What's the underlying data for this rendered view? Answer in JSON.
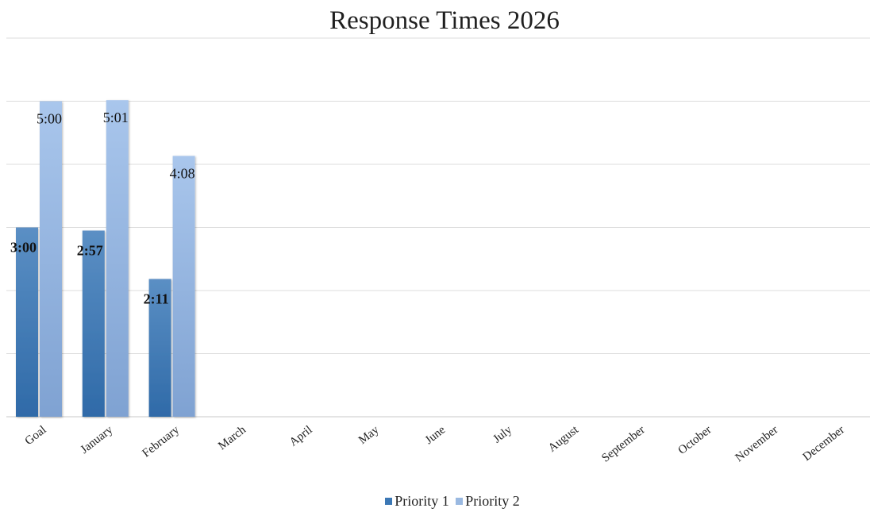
{
  "chart_data": {
    "type": "bar",
    "title": "Response Times 2026",
    "xlabel": "",
    "ylabel": "",
    "y_unit": "minutes",
    "ylim": [
      0,
      6.25
    ],
    "grid": true,
    "legend_position": "bottom",
    "categories": [
      "Goal",
      "January",
      "February",
      "March",
      "April",
      "May",
      "June",
      "July",
      "August",
      "September",
      "October",
      "November",
      "December"
    ],
    "series": [
      {
        "name": "Priority 1",
        "color": "#3c78b5",
        "values": [
          3.0,
          2.95,
          2.1833,
          null,
          null,
          null,
          null,
          null,
          null,
          null,
          null,
          null,
          null
        ],
        "labels": [
          "3:00",
          "2:57",
          "2:11",
          "",
          "",
          "",
          "",
          "",
          "",
          "",
          "",
          "",
          ""
        ]
      },
      {
        "name": "Priority 2",
        "color": "#9ab9e1",
        "values": [
          5.0,
          5.0167,
          4.1333,
          null,
          null,
          null,
          null,
          null,
          null,
          null,
          null,
          null,
          null
        ],
        "labels": [
          "5:00",
          "5:01",
          "4:08",
          "",
          "",
          "",
          "",
          "",
          "",
          "",
          "",
          "",
          ""
        ]
      }
    ]
  }
}
